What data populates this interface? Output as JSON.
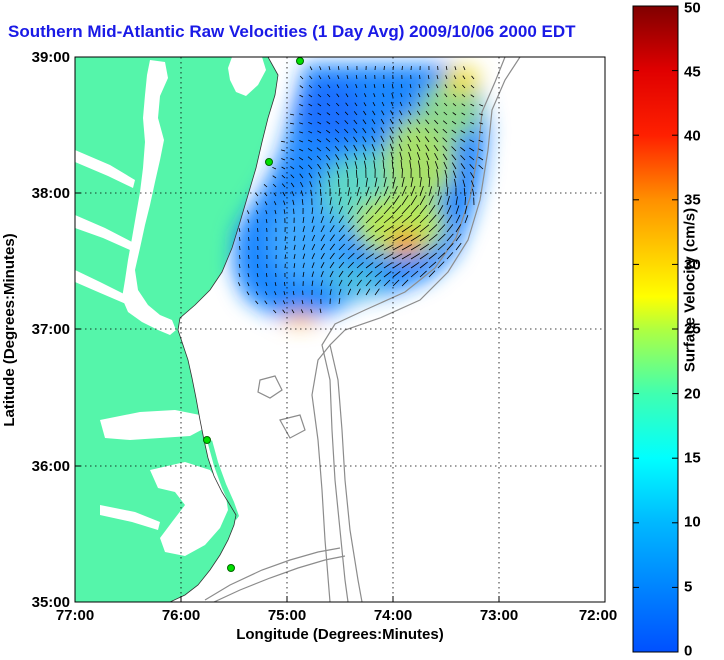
{
  "title": "Southern Mid-Atlantic Raw Velocities (1 Day Avg) 2009/10/06 2000 EDT",
  "map": {
    "x_label": "Longitude (Degrees:Minutes)",
    "y_label": "Latitude (Degrees:Minutes)",
    "x_ticks": [
      "77:00",
      "76:00",
      "75:00",
      "74:00",
      "73:00",
      "72:00"
    ],
    "y_ticks": [
      "39:00",
      "38:00",
      "37:00",
      "36:00",
      "35:00"
    ],
    "land_color": "#55f5aa",
    "grid": "dotted"
  },
  "colorbar": {
    "label": "Surface Velocity (cm/s)",
    "ticks": [
      "50",
      "45",
      "40",
      "35",
      "30",
      "25",
      "20",
      "15",
      "10",
      "5",
      "0"
    ],
    "range": [
      0,
      50
    ],
    "colors": [
      "#0050ff",
      "#00d0ff",
      "#40ffc0",
      "#ffff00",
      "#ff8000",
      "#ff0000",
      "#800000"
    ]
  }
}
